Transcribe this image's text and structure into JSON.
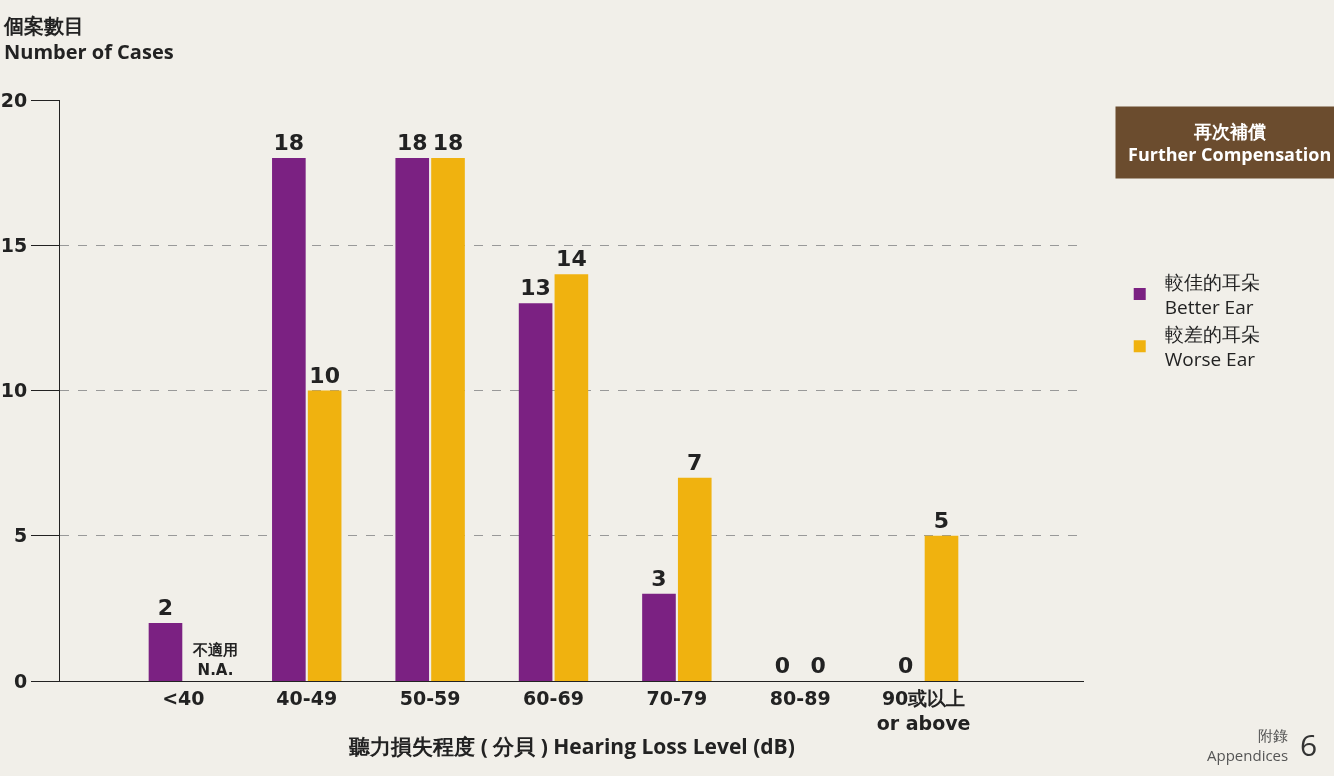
{
  "chart_data": {
    "type": "bar",
    "ylabel": "個案數目\nNumber of Cases",
    "xlabel": "聽力損失程度 ( 分貝 ) Hearing Loss Level (dB)",
    "legend_title": "再次補償\nFurther Compensation",
    "categories": [
      "<40",
      "40-49",
      "50-59",
      "60-69",
      "70-79",
      "80-89",
      "90或以上\nor above"
    ],
    "series": [
      {
        "name": "較佳的耳朵\nBetter Ear",
        "color": "#7b2182",
        "values": [
          2,
          18,
          18,
          13,
          3,
          0,
          0
        ]
      },
      {
        "name": "較差的耳朵\nWorse Ear",
        "color": "#f0b20f",
        "values": [
          null,
          10,
          18,
          14,
          7,
          0,
          5
        ]
      }
    ],
    "ylim": [
      0,
      20
    ],
    "yticks": [
      0,
      5,
      10,
      15,
      20
    ],
    "grid": "y",
    "legend": "right",
    "data_labels": true,
    "annotations": [
      {
        "text": "不適用\nN.A.",
        "x": "<40",
        "y": 0
      },
      "附錄\nAppendices",
      "6"
    ]
  }
}
